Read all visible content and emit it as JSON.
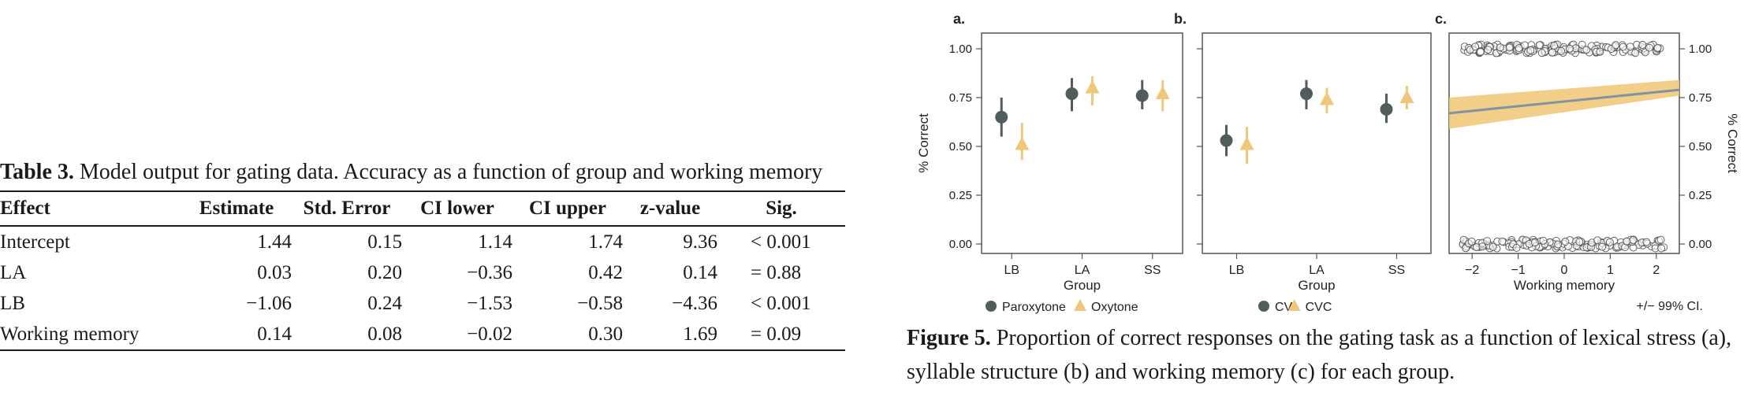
{
  "table": {
    "label": "Table 3.",
    "caption": "Model output for gating data. Accuracy as a function of group and working memory",
    "headers": [
      "Effect",
      "Estimate",
      "Std. Error",
      "CI lower",
      "CI upper",
      "z-value",
      "Sig."
    ],
    "rows": [
      [
        "Intercept",
        "1.44",
        "0.15",
        "1.14",
        "1.74",
        "9.36",
        "< 0.001"
      ],
      [
        "LA",
        "0.03",
        "0.20",
        "−0.36",
        "0.42",
        "0.14",
        "= 0.88"
      ],
      [
        "LB",
        "−1.06",
        "0.24",
        "−1.53",
        "−0.58",
        "−4.36",
        "< 0.001"
      ],
      [
        "Working memory",
        "0.14",
        "0.08",
        "−0.02",
        "0.30",
        "1.69",
        "= 0.09"
      ]
    ]
  },
  "figure": {
    "label": "Figure 5.",
    "caption": "Proportion of correct responses on the gating task as a function of lexical stress (a), syllable structure (b) and working memory (c) for each group.",
    "ci_note": "+/− 99% CI.",
    "colors": {
      "series1": "#4f5e5d",
      "series2": "#f0c77a",
      "ribbon": "#f0c674",
      "line": "#7f93a3"
    }
  },
  "chart_data": [
    {
      "type": "scatter",
      "panel_label": "a.",
      "xlabel": "Group",
      "ylabel": "% Correct",
      "categories": [
        "LB",
        "LA",
        "SS"
      ],
      "ylim": [
        0,
        1
      ],
      "yticks": [
        "0.00",
        "0.25",
        "0.50",
        "0.75",
        "1.00"
      ],
      "series": [
        {
          "name": "Paroxytone",
          "marker": "circle",
          "values": [
            0.65,
            0.77,
            0.76
          ],
          "ci_low": [
            0.55,
            0.68,
            0.69
          ],
          "ci_high": [
            0.75,
            0.85,
            0.84
          ]
        },
        {
          "name": "Oxytone",
          "marker": "triangle",
          "values": [
            0.51,
            0.8,
            0.77
          ],
          "ci_low": [
            0.43,
            0.71,
            0.68
          ],
          "ci_high": [
            0.62,
            0.86,
            0.84
          ]
        }
      ]
    },
    {
      "type": "scatter",
      "panel_label": "b.",
      "xlabel": "Group",
      "categories": [
        "LB",
        "LA",
        "SS"
      ],
      "ylim": [
        0,
        1
      ],
      "series": [
        {
          "name": "CV",
          "marker": "circle",
          "values": [
            0.53,
            0.77,
            0.69
          ],
          "ci_low": [
            0.45,
            0.69,
            0.62
          ],
          "ci_high": [
            0.61,
            0.84,
            0.77
          ]
        },
        {
          "name": "CVC",
          "marker": "triangle",
          "values": [
            0.51,
            0.74,
            0.75
          ],
          "ci_low": [
            0.41,
            0.67,
            0.69
          ],
          "ci_high": [
            0.6,
            0.8,
            0.81
          ]
        }
      ]
    },
    {
      "type": "line",
      "panel_label": "c.",
      "xlabel": "Working memory",
      "ylabel": "% Correct",
      "xlim": [
        -2.5,
        2.5
      ],
      "xticks": [
        "−2",
        "−1",
        "0",
        "1",
        "2"
      ],
      "ylim": [
        0,
        1
      ],
      "yticks": [
        "0.00",
        "0.25",
        "0.50",
        "0.75",
        "1.00"
      ],
      "fit": {
        "x": [
          -2.5,
          2.5
        ],
        "y": [
          0.67,
          0.79
        ],
        "ci_low": [
          0.59,
          0.76
        ],
        "ci_high": [
          0.75,
          0.84
        ]
      }
    }
  ]
}
